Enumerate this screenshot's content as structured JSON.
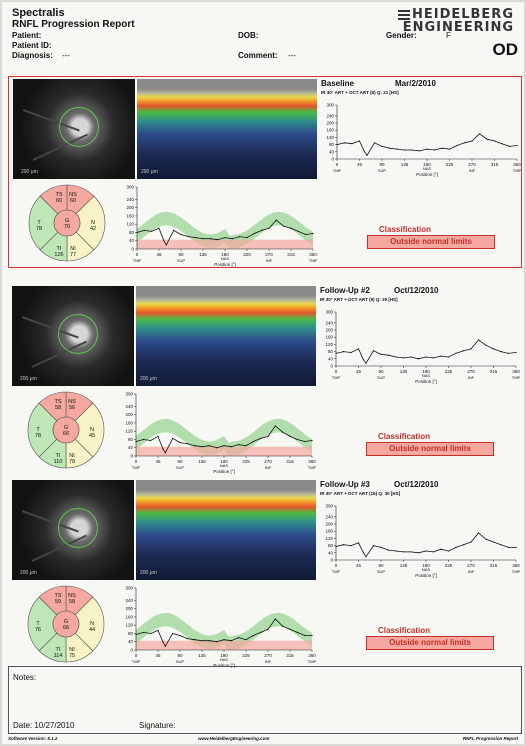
{
  "header": {
    "title": "Spectralis",
    "subtitle": "RNFL Progression Report",
    "logo_line1": "HEIDELBERG",
    "logo_line2": "ENGINEERING",
    "eye": "OD"
  },
  "patient": {
    "patient_label": "Patient:",
    "patient_id_label": "Patient ID:",
    "diagnosis_label": "Diagnosis:",
    "diagnosis_value": "---",
    "dob_label": "DOB:",
    "comment_label": "Comment:",
    "comment_value": "---",
    "gender_label": "Gender:",
    "gender_value": "F"
  },
  "exams": [
    {
      "title": "Baseline",
      "date": "Mar/2/2010",
      "info": "IR 30° ART + OCT ART (6) Q: 21 [HS]",
      "classification_label": "Classification",
      "classification": "Outside normal limits",
      "sectors": {
        "TS": "60",
        "NS": "60",
        "T": "78",
        "G": "70",
        "N": "42",
        "TI": "126",
        "NI": "77"
      },
      "scale_label": "200 µm"
    },
    {
      "title": "Follow-Up #2",
      "date": "Oct/12/2010",
      "info": "IR 30° ART + OCT ART (9) Q: 29 [HS]",
      "classification_label": "Classification",
      "classification": "Outside normal limits",
      "sectors": {
        "TS": "58",
        "NS": "56",
        "T": "78",
        "G": "66",
        "N": "45",
        "TI": "110",
        "NI": "78"
      },
      "scale_label": "200 µm"
    },
    {
      "title": "Follow-Up #3",
      "date": "Oct/12/2010",
      "info": "IR 30° ART + OCT ART (16) Q: 30 [HS]",
      "classification_label": "Classification",
      "classification": "Outside normal limits",
      "sectors": {
        "TS": "59",
        "NS": "58",
        "T": "76",
        "G": "66",
        "N": "44",
        "TI": "114",
        "NI": "75"
      },
      "scale_label": "200 µm"
    }
  ],
  "chart_data": [
    {
      "type": "line",
      "name": "Baseline RNFL thickness profile",
      "xlabel": "Position [°]",
      "xlim": [
        0,
        360
      ],
      "ylim": [
        0,
        300
      ],
      "x_ticks": [
        "0",
        "45",
        "90",
        "135",
        "180",
        "225",
        "270",
        "315",
        "360"
      ],
      "y_ticks": [
        "0",
        "40",
        "80",
        "120",
        "160",
        "200",
        "240",
        "300"
      ],
      "sector_labels": [
        "TMP",
        "SUP",
        "NAS",
        "INF",
        "TMP"
      ],
      "x": [
        0,
        15,
        30,
        45,
        55,
        60,
        75,
        90,
        105,
        120,
        135,
        150,
        165,
        180,
        195,
        210,
        225,
        240,
        255,
        270,
        285,
        300,
        315,
        330,
        345,
        360
      ],
      "values": [
        80,
        90,
        85,
        100,
        40,
        20,
        90,
        70,
        60,
        55,
        50,
        50,
        45,
        55,
        50,
        60,
        55,
        75,
        90,
        100,
        140,
        110,
        100,
        85,
        70,
        75
      ]
    },
    {
      "type": "line",
      "name": "Follow-Up #2 RNFL thickness profile",
      "xlabel": "Position [°]",
      "xlim": [
        0,
        360
      ],
      "ylim": [
        0,
        300
      ],
      "x_ticks": [
        "0",
        "45",
        "90",
        "135",
        "180",
        "225",
        "270",
        "315",
        "360"
      ],
      "y_ticks": [
        "0",
        "40",
        "80",
        "120",
        "160",
        "200",
        "240",
        "300"
      ],
      "sector_labels": [
        "TMP",
        "SUP",
        "NAS",
        "INF",
        "TMP"
      ],
      "x": [
        0,
        15,
        30,
        45,
        55,
        60,
        75,
        90,
        105,
        120,
        135,
        150,
        165,
        180,
        195,
        210,
        225,
        240,
        255,
        270,
        285,
        300,
        315,
        330,
        345,
        360
      ],
      "values": [
        70,
        80,
        75,
        95,
        35,
        15,
        85,
        65,
        60,
        50,
        45,
        50,
        40,
        50,
        45,
        55,
        50,
        70,
        85,
        95,
        145,
        115,
        95,
        80,
        70,
        75
      ]
    },
    {
      "type": "line",
      "name": "Follow-Up #3 RNFL thickness profile",
      "xlabel": "Position [°]",
      "xlim": [
        0,
        360
      ],
      "ylim": [
        0,
        300
      ],
      "x_ticks": [
        "0",
        "45",
        "90",
        "135",
        "180",
        "225",
        "270",
        "315",
        "360"
      ],
      "y_ticks": [
        "0",
        "40",
        "80",
        "120",
        "160",
        "200",
        "240",
        "300"
      ],
      "sector_labels": [
        "TMP",
        "SUP",
        "NAS",
        "INF",
        "TMP"
      ],
      "x": [
        0,
        15,
        30,
        45,
        55,
        60,
        75,
        90,
        105,
        120,
        135,
        150,
        165,
        180,
        195,
        210,
        225,
        240,
        255,
        270,
        285,
        300,
        315,
        330,
        345,
        360
      ],
      "values": [
        75,
        85,
        80,
        95,
        40,
        18,
        80,
        70,
        55,
        50,
        45,
        45,
        40,
        50,
        45,
        60,
        50,
        70,
        85,
        100,
        150,
        115,
        100,
        85,
        70,
        70
      ]
    }
  ],
  "notes": {
    "notes_label": "Notes:",
    "date_label": "Date:",
    "date_value": "10/27/2010",
    "signature_label": "Signature:"
  },
  "footer": {
    "software": "Software Version: 5.1.2",
    "website": "www.HeidelbergEngineering.com",
    "report_name": "RNFL Progression Report"
  },
  "colors": {
    "highlight": "#d8322a",
    "outside_normal": "#f4a8a0",
    "borderline": "#f7f3c6",
    "normal": "#bfe6b6",
    "band_green": "#9fd79a"
  }
}
